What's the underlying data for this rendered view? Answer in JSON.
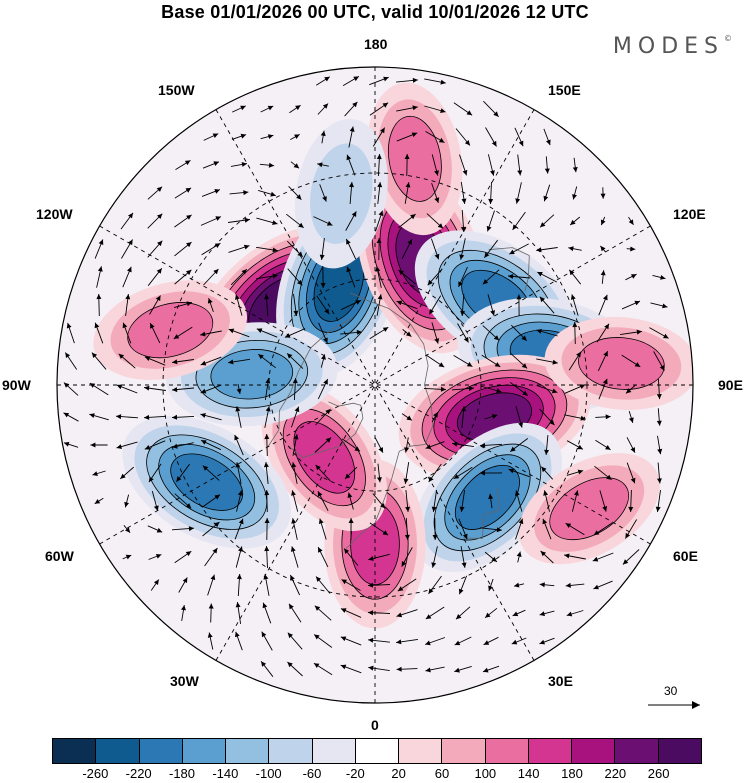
{
  "title": "Base 01/01/2026 00 UTC, valid 10/01/2026 12 UTC",
  "brand": "MODES",
  "brand_mark": "©",
  "longitude_labels": {
    "lon_180": "180",
    "lon_150e": "150E",
    "lon_120e": "120E",
    "lon_90e": "90E",
    "lon_60e": "60E",
    "lon_30e": "30E",
    "lon_0": "0",
    "lon_30w": "30W",
    "lon_60w": "60W",
    "lon_90w": "90W",
    "lon_120w": "120W",
    "lon_150w": "150W"
  },
  "reference_vector": {
    "label": "30"
  },
  "colorbar": {
    "colors": [
      "#0b2f52",
      "#0f5a8e",
      "#2b78b4",
      "#5a9fd0",
      "#93bfe0",
      "#bfd3ea",
      "#e6e6f2",
      "#ffffff",
      "#f8d6dc",
      "#f3aabb",
      "#ea6fa0",
      "#d33590",
      "#a8127e",
      "#6b0f73",
      "#4a0b60"
    ],
    "ticks": [
      "-260",
      "-220",
      "-180",
      "-140",
      "-100",
      "-60",
      "-20",
      "20",
      "60",
      "100",
      "140",
      "180",
      "220",
      "260"
    ]
  },
  "anomalies": [
    {
      "kind": "pos",
      "lon": -130,
      "lat": 55,
      "strength": 260
    },
    {
      "kind": "neg",
      "lon": -160,
      "lat": 60,
      "strength": 220
    },
    {
      "kind": "pos",
      "lon": 160,
      "lat": 52,
      "strength": 240
    },
    {
      "kind": "neg",
      "lon": 125,
      "lat": 48,
      "strength": 200
    },
    {
      "kind": "neg",
      "lon": 100,
      "lat": 40,
      "strength": 200
    },
    {
      "kind": "pos",
      "lon": 75,
      "lat": 55,
      "strength": 240
    },
    {
      "kind": "neg",
      "lon": 45,
      "lat": 45,
      "strength": 190
    },
    {
      "kind": "pos",
      "lon": 0,
      "lat": 45,
      "strength": 150
    },
    {
      "kind": "pos",
      "lon": -35,
      "lat": 65,
      "strength": 140
    },
    {
      "kind": "neg",
      "lon": -60,
      "lat": 35,
      "strength": 200
    },
    {
      "kind": "neg",
      "lon": -95,
      "lat": 55,
      "strength": 160
    },
    {
      "kind": "pos",
      "lon": -105,
      "lat": 30,
      "strength": 110
    },
    {
      "kind": "pos",
      "lon": 170,
      "lat": 25,
      "strength": 100
    },
    {
      "kind": "neg",
      "lon": -170,
      "lat": 35,
      "strength": 90
    },
    {
      "kind": "pos",
      "lon": 95,
      "lat": 20,
      "strength": 100
    },
    {
      "kind": "pos",
      "lon": 60,
      "lat": 20,
      "strength": 100
    }
  ]
}
